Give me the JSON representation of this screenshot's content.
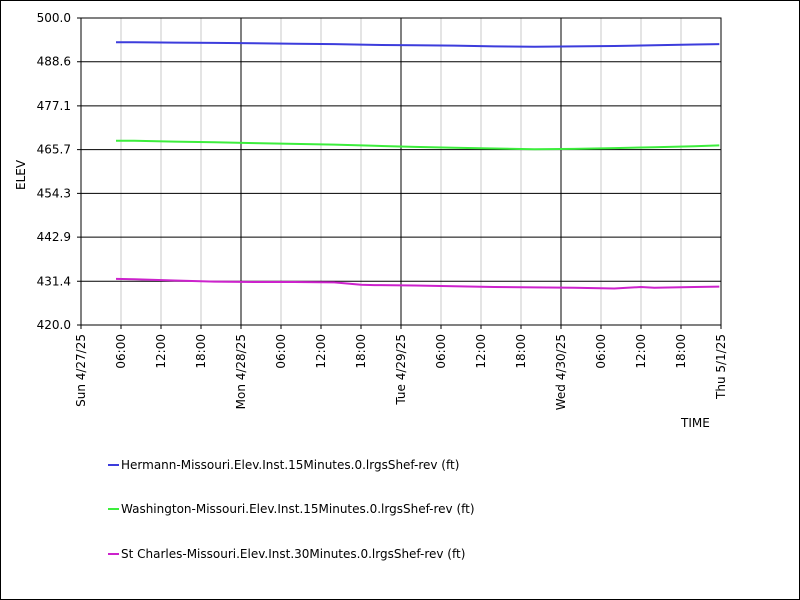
{
  "chart_data": {
    "type": "line",
    "xlabel": "TIME",
    "ylabel": "ELEV",
    "ylim": [
      420.0,
      500.0
    ],
    "xlim": [
      "2025-04-27T00:00",
      "2025-05-01T00:00"
    ],
    "y_ticks": [
      "500.0",
      "488.6",
      "477.1",
      "465.7",
      "454.3",
      "442.9",
      "431.4",
      "420.0"
    ],
    "x_major_ticks": [
      {
        "t": "2025-04-27T00:00",
        "label": "Sun 4/27/25"
      },
      {
        "t": "2025-04-28T00:00",
        "label": "Mon 4/28/25"
      },
      {
        "t": "2025-04-29T00:00",
        "label": "Tue 4/29/25"
      },
      {
        "t": "2025-04-30T00:00",
        "label": "Wed 4/30/25"
      },
      {
        "t": "2025-05-01T00:00",
        "label": "Thu 5/1/25"
      }
    ],
    "x_minor_ticks": [
      {
        "t": "2025-04-27T06:00",
        "label": "06:00"
      },
      {
        "t": "2025-04-27T12:00",
        "label": "12:00"
      },
      {
        "t": "2025-04-27T18:00",
        "label": "18:00"
      },
      {
        "t": "2025-04-28T06:00",
        "label": "06:00"
      },
      {
        "t": "2025-04-28T12:00",
        "label": "12:00"
      },
      {
        "t": "2025-04-28T18:00",
        "label": "18:00"
      },
      {
        "t": "2025-04-29T06:00",
        "label": "06:00"
      },
      {
        "t": "2025-04-29T12:00",
        "label": "12:00"
      },
      {
        "t": "2025-04-29T18:00",
        "label": "18:00"
      },
      {
        "t": "2025-04-30T06:00",
        "label": "06:00"
      },
      {
        "t": "2025-04-30T12:00",
        "label": "12:00"
      },
      {
        "t": "2025-04-30T18:00",
        "label": "18:00"
      }
    ],
    "grid": true,
    "legend_position": "bottom",
    "series": [
      {
        "name": "Hermann-Missouri.Elev.Inst.15Minutes.0.lrgsShef-rev (ft)",
        "color": "#3c3cdc",
        "x": [
          "2025-04-27T05:15",
          "2025-04-27T08:00",
          "2025-04-27T14:00",
          "2025-04-27T20:00",
          "2025-04-28T02:00",
          "2025-04-28T08:00",
          "2025-04-28T14:00",
          "2025-04-28T20:00",
          "2025-04-29T02:00",
          "2025-04-29T08:00",
          "2025-04-29T14:00",
          "2025-04-29T20:00",
          "2025-04-30T02:00",
          "2025-04-30T08:00",
          "2025-04-30T14:00",
          "2025-04-30T20:00",
          "2025-04-30T23:45"
        ],
        "y": [
          493.7,
          493.7,
          493.6,
          493.5,
          493.4,
          493.3,
          493.2,
          493.0,
          492.9,
          492.8,
          492.6,
          492.5,
          492.6,
          492.7,
          492.9,
          493.1,
          493.2
        ]
      },
      {
        "name": "Washington-Missouri.Elev.Inst.15Minutes.0.lrgsShef-rev (ft)",
        "color": "#3cee3c",
        "x": [
          "2025-04-27T05:15",
          "2025-04-27T08:00",
          "2025-04-27T14:00",
          "2025-04-27T20:00",
          "2025-04-28T02:00",
          "2025-04-28T08:00",
          "2025-04-28T14:00",
          "2025-04-28T20:00",
          "2025-04-29T02:00",
          "2025-04-29T08:00",
          "2025-04-29T14:00",
          "2025-04-29T20:00",
          "2025-04-30T02:00",
          "2025-04-30T08:00",
          "2025-04-30T14:00",
          "2025-04-30T20:00",
          "2025-04-30T23:45"
        ],
        "y": [
          468.0,
          468.0,
          467.8,
          467.6,
          467.4,
          467.2,
          467.0,
          466.7,
          466.4,
          466.2,
          466.0,
          465.8,
          465.9,
          466.1,
          466.3,
          466.6,
          466.8
        ]
      },
      {
        "name": "St Charles-Missouri.Elev.Inst.30Minutes.0.lrgsShef-rev (ft)",
        "color": "#cc22cc",
        "x": [
          "2025-04-27T05:15",
          "2025-04-27T08:00",
          "2025-04-27T14:00",
          "2025-04-27T20:00",
          "2025-04-28T02:00",
          "2025-04-28T08:00",
          "2025-04-28T14:00",
          "2025-04-28T18:00",
          "2025-04-28T20:00",
          "2025-04-29T02:00",
          "2025-04-29T08:00",
          "2025-04-29T14:00",
          "2025-04-29T20:00",
          "2025-04-30T02:00",
          "2025-04-30T08:00",
          "2025-04-30T12:00",
          "2025-04-30T14:00",
          "2025-04-30T20:00",
          "2025-04-30T23:45"
        ],
        "y": [
          432.0,
          431.9,
          431.6,
          431.3,
          431.2,
          431.2,
          431.1,
          430.5,
          430.4,
          430.3,
          430.1,
          429.9,
          429.8,
          429.7,
          429.5,
          429.9,
          429.7,
          429.9,
          430.0
        ]
      }
    ]
  }
}
